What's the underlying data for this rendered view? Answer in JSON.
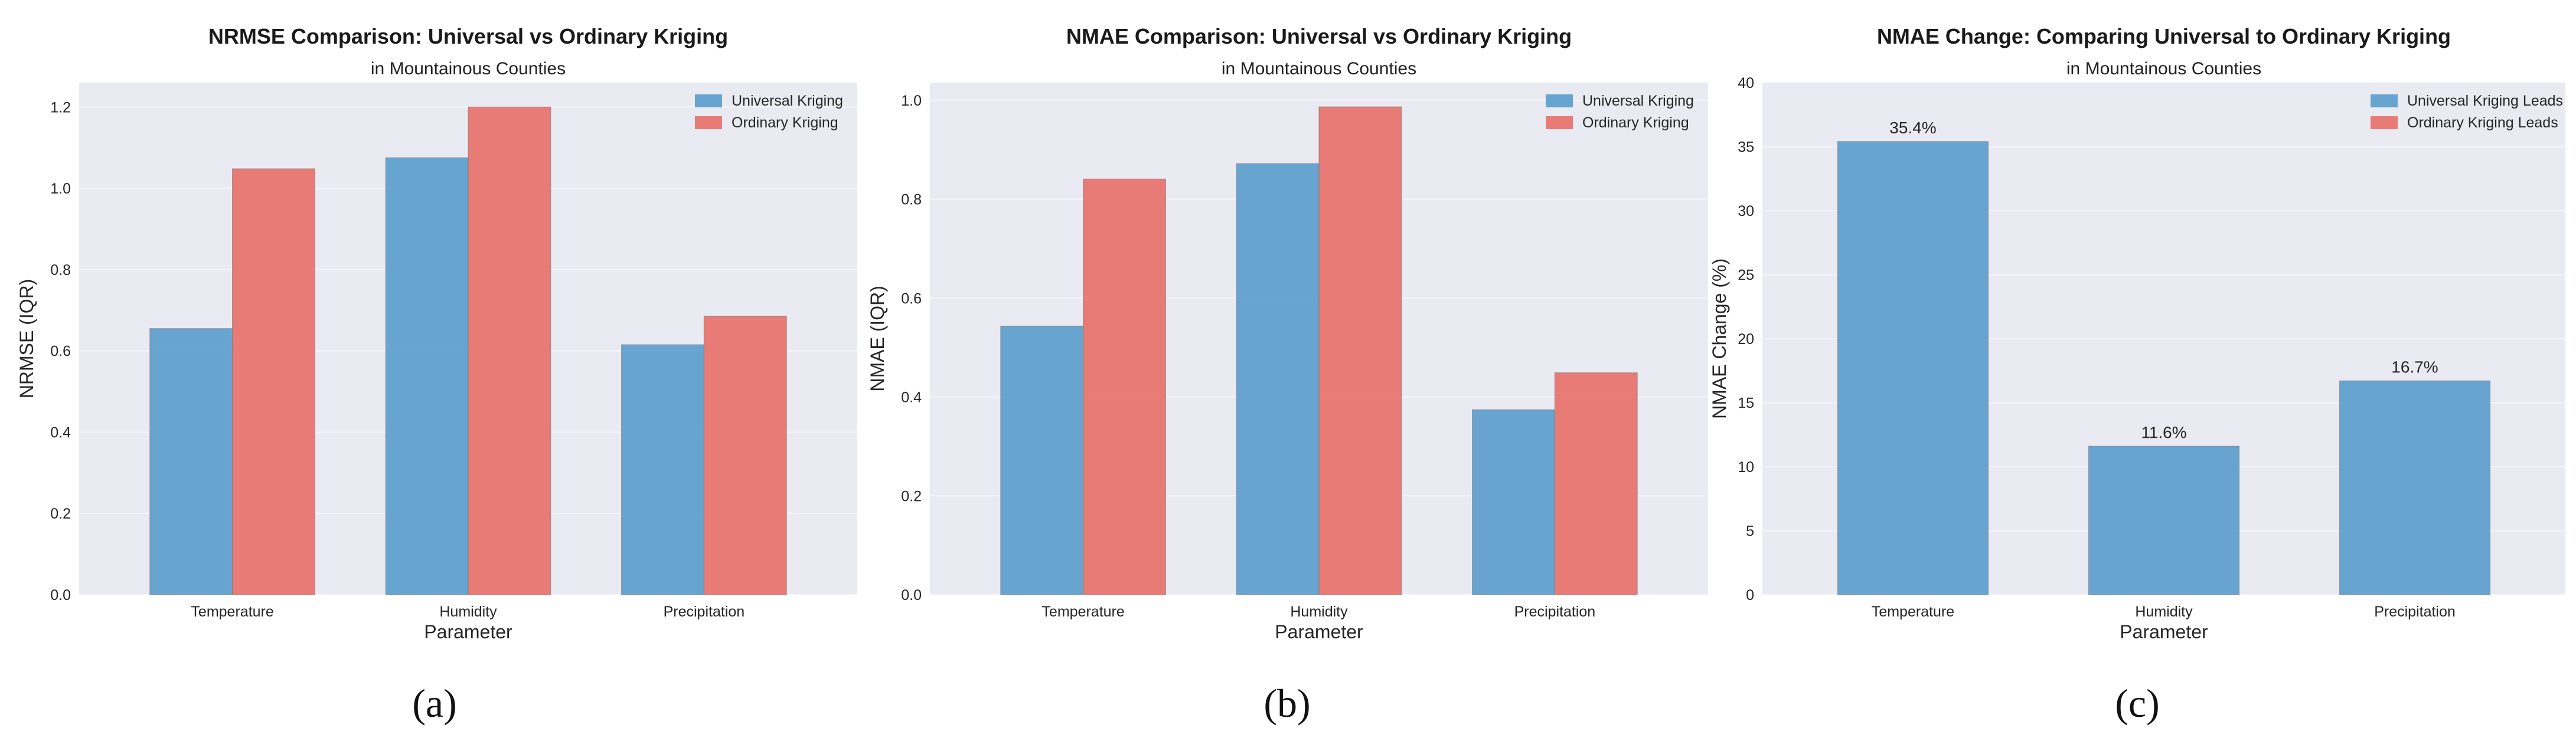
{
  "colors": {
    "universal": "#5b9ecd",
    "ordinary": "#e8716b",
    "plot_bg": "#eaeaf2",
    "grid": "#f5f5f9"
  },
  "chart_data": [
    {
      "type": "bar",
      "title": "NRMSE Comparison: Universal vs Ordinary Kriging",
      "subtitle": "in Mountainous Counties",
      "xlabel": "Parameter",
      "ylabel": "NRMSE (IQR)",
      "categories": [
        "Temperature",
        "Humidity",
        "Precipitation"
      ],
      "series": [
        {
          "name": "Universal Kriging",
          "values": [
            0.655,
            1.075,
            0.615
          ]
        },
        {
          "name": "Ordinary Kriging",
          "values": [
            1.048,
            1.2,
            0.685
          ]
        }
      ],
      "ylim": [
        0,
        1.26
      ],
      "yticks": [
        "0.0",
        "0.2",
        "0.4",
        "0.6",
        "0.8",
        "1.0",
        "1.2"
      ],
      "legend": "top-right",
      "grid": true,
      "caption": "(a)"
    },
    {
      "type": "bar",
      "title": "NMAE Comparison: Universal vs Ordinary Kriging",
      "subtitle": "in Mountainous Counties",
      "xlabel": "Parameter",
      "ylabel": "NMAE (IQR)",
      "categories": [
        "Temperature",
        "Humidity",
        "Precipitation"
      ],
      "series": [
        {
          "name": "Universal Kriging",
          "values": [
            0.543,
            0.872,
            0.374
          ]
        },
        {
          "name": "Ordinary Kriging",
          "values": [
            0.841,
            0.987,
            0.449
          ]
        }
      ],
      "ylim": [
        0,
        1.036
      ],
      "yticks": [
        "0.0",
        "0.2",
        "0.4",
        "0.6",
        "0.8",
        "1.0"
      ],
      "legend": "top-right",
      "grid": true,
      "caption": "(b)"
    },
    {
      "type": "bar",
      "title": "NMAE Change: Comparing Universal to Ordinary Kriging",
      "subtitle": "in Mountainous Counties",
      "xlabel": "Parameter",
      "ylabel": "NMAE Change (%)",
      "categories": [
        "Temperature",
        "Humidity",
        "Precipitation"
      ],
      "series": [
        {
          "name": "Universal Kriging Leads",
          "values": [
            35.4,
            11.6,
            16.7
          ]
        },
        {
          "name": "Ordinary Kriging Leads",
          "values": [
            null,
            null,
            null
          ]
        }
      ],
      "data_labels": [
        "35.4%",
        "11.6%",
        "16.7%"
      ],
      "ylim": [
        0,
        40
      ],
      "yticks": [
        "0",
        "5",
        "10",
        "15",
        "20",
        "25",
        "30",
        "35",
        "40"
      ],
      "legend": "top-right",
      "grid": true,
      "caption": "(c)"
    }
  ]
}
